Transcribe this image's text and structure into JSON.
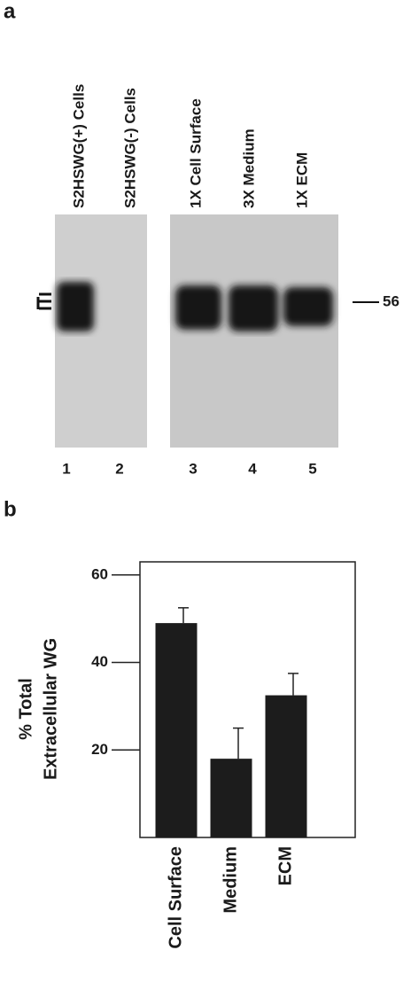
{
  "blot": {
    "label": "a",
    "lanes": [
      "S2HSWG(+) Cells",
      "S2HSWG(-) Cells",
      "1X Cell Surface",
      "3X Medium",
      "1X ECM"
    ],
    "lane_numbers": [
      "1",
      "2",
      "3",
      "4",
      "5"
    ],
    "marker": "56"
  },
  "chart_data": {
    "type": "bar",
    "label": "b",
    "ylabel": [
      "% Total",
      "Extracellular WG"
    ],
    "categories": [
      "Cell Surface",
      "Medium",
      "ECM"
    ],
    "values": [
      49,
      18,
      32.5
    ],
    "errors": [
      3.5,
      7,
      5
    ],
    "color": "#1c1c1c",
    "ylim": [
      0,
      63
    ],
    "yticks": [
      20,
      40,
      60
    ]
  }
}
